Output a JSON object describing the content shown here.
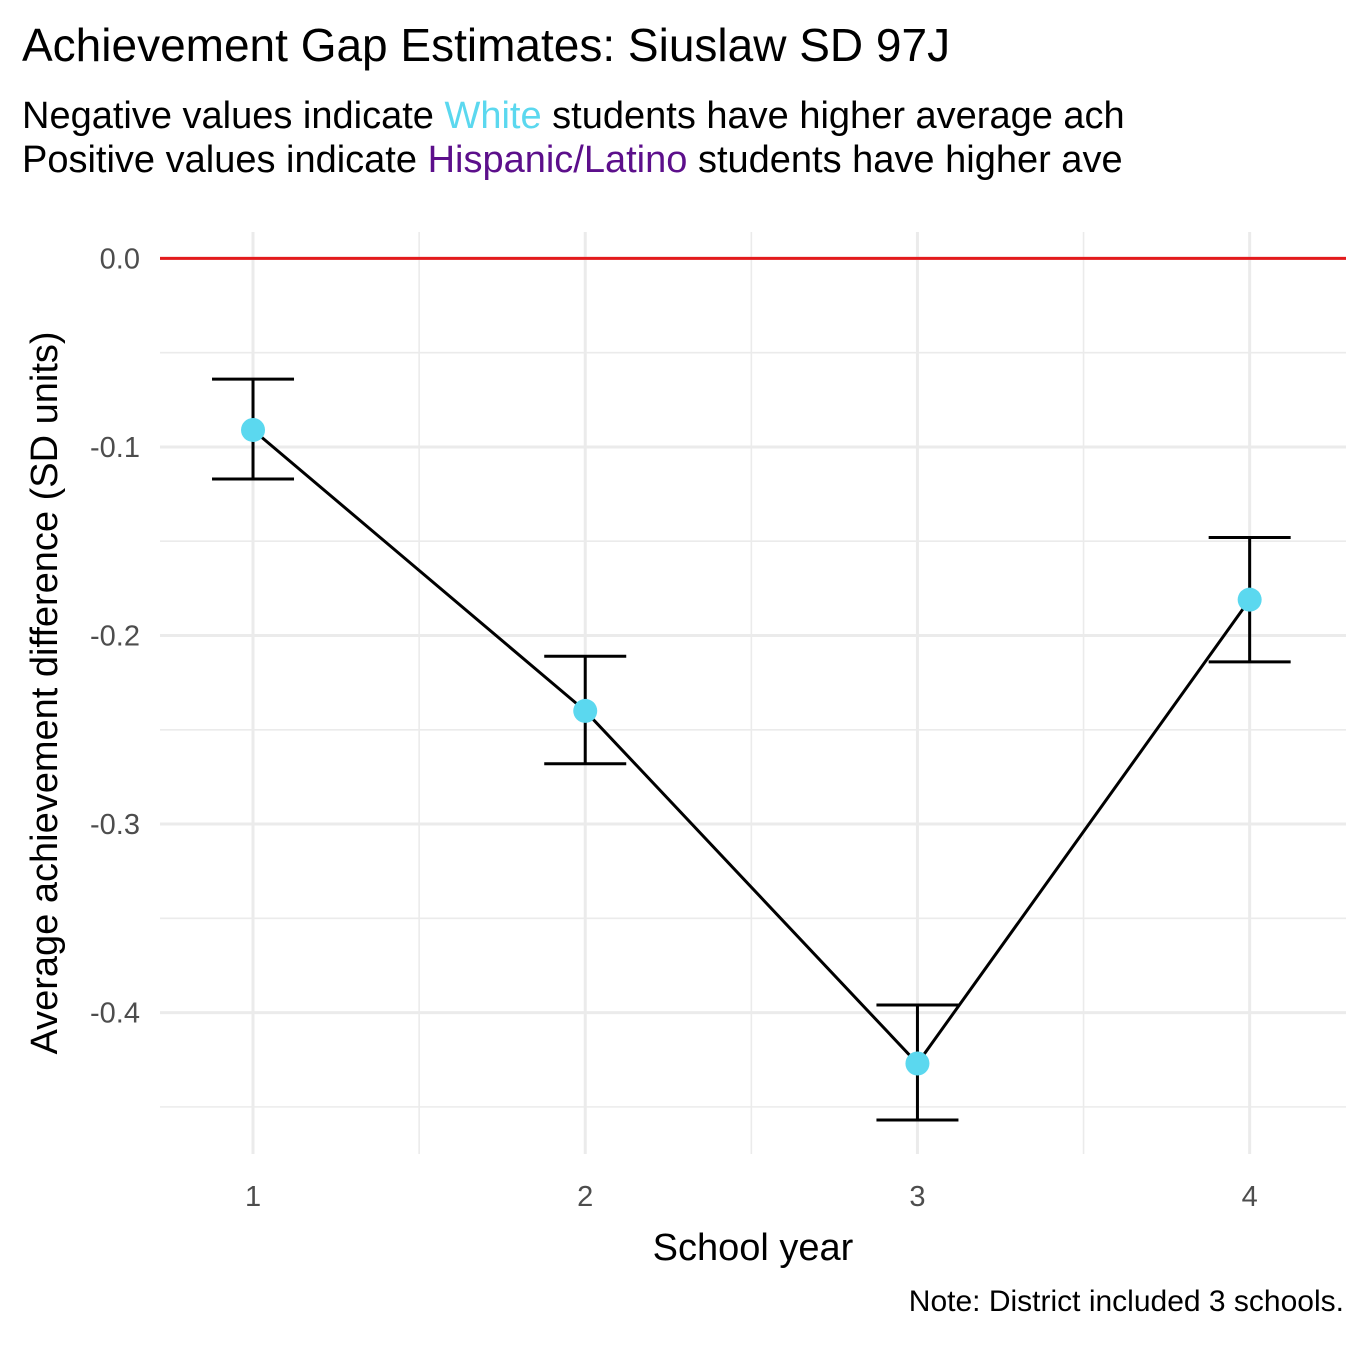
{
  "chart_data": {
    "type": "line",
    "title": "Achievement Gap Estimates: Siuslaw SD 97J",
    "subtitle": [
      {
        "before": "Negative values indicate ",
        "group": "White",
        "after": " students have higher average ach"
      },
      {
        "before": "Positive values indicate ",
        "group": "Hispanic/Latino",
        "after": " students have higher ave"
      }
    ],
    "caption": "Note: District included 3 schools.",
    "xlabel": "School year",
    "ylabel": "Average achievement difference (SD units)",
    "x": [
      1,
      2,
      3,
      4
    ],
    "x_ticks": [
      "1",
      "2",
      "3",
      "4"
    ],
    "y": [
      -0.091,
      -0.24,
      -0.427,
      -0.181
    ],
    "y_lower": [
      -0.117,
      -0.268,
      -0.457,
      -0.214
    ],
    "y_upper": [
      -0.064,
      -0.211,
      -0.396,
      -0.148
    ],
    "y_ticks": [
      "0.0",
      "-0.1",
      "-0.2",
      "-0.3",
      "-0.4"
    ],
    "xlim": [
      0.72,
      4.29
    ],
    "ylim": [
      -0.475,
      0.014
    ],
    "reference_line_y": 0,
    "grid": true,
    "colors": {
      "point": "#5bd8ef",
      "line": "#000000",
      "reference_line": "#e31a1c",
      "white_label": "#5bd8ef",
      "hispanic_label": "#5c0f8b",
      "grid": "#ebebeb"
    }
  }
}
